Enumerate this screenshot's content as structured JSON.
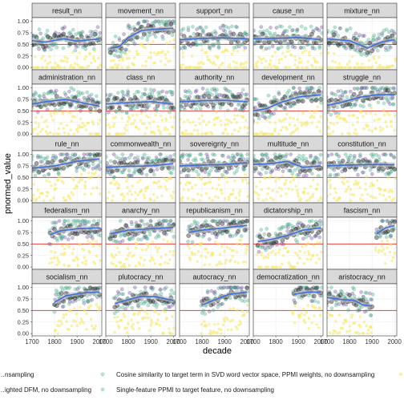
{
  "chart_data": {
    "type": "scatter",
    "title": "",
    "xlabel": "decade",
    "ylabel": "pnormed_value",
    "xlim": [
      1700,
      2010
    ],
    "ylim": [
      -0.05,
      1.08
    ],
    "x_ticks": [
      1700,
      1800,
      1900,
      2000
    ],
    "x_tick_labels": [
      "1700",
      "1800",
      "1900",
      "2000"
    ],
    "y_ticks": [
      0,
      0.25,
      0.5,
      0.75,
      1
    ],
    "y_tick_labels": [
      "0.00",
      "0.25",
      "0.50",
      "0.75",
      "1.00"
    ],
    "reference_line": 0.5,
    "grid": true,
    "legend_position": "bottom",
    "colors": {
      "strip_fill": "#d9d9d9",
      "panel_border": "#333333",
      "grid": "#ebebeb",
      "reference": "#e8413c",
      "smooth": "#3f6fd8",
      "ribbon": "#bfbfbf",
      "series": [
        "#333333",
        "#44aa88",
        "#6a4c9c",
        "#f5e663"
      ]
    },
    "legend_entries": [
      "…nsampling",
      "Cosine similarity to target term in SVD word vector space, PPMI weights, no downsampling",
      "…ighted DFM, no downsampling",
      "Single-feature PPMI to target feature, no downsampling"
    ],
    "panels": [
      {
        "name": "result_nn",
        "start": 1700,
        "end": 2000,
        "trend": [
          [
            1700,
            0.58
          ],
          [
            1760,
            0.55
          ],
          [
            1840,
            0.62
          ],
          [
            1900,
            0.57
          ],
          [
            1960,
            0.6
          ],
          [
            2000,
            0.62
          ]
        ]
      },
      {
        "name": "movement_nn",
        "start": 1720,
        "end": 2000,
        "trend": [
          [
            1720,
            0.42
          ],
          [
            1760,
            0.45
          ],
          [
            1800,
            0.65
          ],
          [
            1860,
            0.8
          ],
          [
            1920,
            0.83
          ],
          [
            2000,
            0.85
          ]
        ]
      },
      {
        "name": "support_nn",
        "start": 1700,
        "end": 2000,
        "trend": [
          [
            1700,
            0.6
          ],
          [
            1800,
            0.63
          ],
          [
            1900,
            0.64
          ],
          [
            2000,
            0.62
          ]
        ]
      },
      {
        "name": "cause_nn",
        "start": 1700,
        "end": 2000,
        "trend": [
          [
            1700,
            0.62
          ],
          [
            1800,
            0.63
          ],
          [
            1900,
            0.65
          ],
          [
            2000,
            0.6
          ]
        ]
      },
      {
        "name": "mixture_nn",
        "start": 1700,
        "end": 2000,
        "trend": [
          [
            1700,
            0.62
          ],
          [
            1800,
            0.58
          ],
          [
            1880,
            0.42
          ],
          [
            1940,
            0.55
          ],
          [
            2000,
            0.6
          ]
        ]
      },
      {
        "name": "administration_nn",
        "start": 1700,
        "end": 2000,
        "trend": [
          [
            1700,
            0.65
          ],
          [
            1760,
            0.7
          ],
          [
            1850,
            0.75
          ],
          [
            1920,
            0.68
          ],
          [
            2000,
            0.6
          ]
        ]
      },
      {
        "name": "class_nn",
        "start": 1700,
        "end": 2000,
        "trend": [
          [
            1700,
            0.65
          ],
          [
            1800,
            0.68
          ],
          [
            1900,
            0.7
          ],
          [
            2000,
            0.65
          ]
        ]
      },
      {
        "name": "authority_nn",
        "start": 1700,
        "end": 2000,
        "trend": [
          [
            1700,
            0.7
          ],
          [
            1800,
            0.72
          ],
          [
            1900,
            0.73
          ],
          [
            2000,
            0.7
          ]
        ]
      },
      {
        "name": "development_nn",
        "start": 1700,
        "end": 2000,
        "trend": [
          [
            1700,
            0.5
          ],
          [
            1760,
            0.55
          ],
          [
            1820,
            0.68
          ],
          [
            1900,
            0.8
          ],
          [
            2000,
            0.85
          ]
        ]
      },
      {
        "name": "struggle_nn",
        "start": 1700,
        "end": 2000,
        "trend": [
          [
            1700,
            0.62
          ],
          [
            1760,
            0.68
          ],
          [
            1850,
            0.8
          ],
          [
            1920,
            0.85
          ],
          [
            2000,
            0.85
          ]
        ]
      },
      {
        "name": "rule_nn",
        "start": 1700,
        "end": 2000,
        "trend": [
          [
            1700,
            0.7
          ],
          [
            1800,
            0.75
          ],
          [
            1900,
            0.85
          ],
          [
            2000,
            0.9
          ]
        ]
      },
      {
        "name": "commonwealth_nn",
        "start": 1700,
        "end": 2000,
        "trend": [
          [
            1700,
            0.72
          ],
          [
            1800,
            0.74
          ],
          [
            1900,
            0.75
          ],
          [
            2000,
            0.8
          ]
        ]
      },
      {
        "name": "sovereignty_nn",
        "start": 1700,
        "end": 2000,
        "trend": [
          [
            1700,
            0.75
          ],
          [
            1800,
            0.77
          ],
          [
            1900,
            0.78
          ],
          [
            2000,
            0.82
          ]
        ]
      },
      {
        "name": "multitude_nn",
        "start": 1700,
        "end": 2000,
        "trend": [
          [
            1700,
            0.78
          ],
          [
            1780,
            0.8
          ],
          [
            1850,
            0.85
          ],
          [
            1920,
            0.72
          ],
          [
            2000,
            0.75
          ]
        ]
      },
      {
        "name": "constitution_nn",
        "start": 1700,
        "end": 2000,
        "trend": [
          [
            1700,
            0.75
          ],
          [
            1800,
            0.77
          ],
          [
            1900,
            0.78
          ],
          [
            2000,
            0.78
          ]
        ]
      },
      {
        "name": "federalism_nn",
        "start": 1780,
        "end": 2000,
        "trend": [
          [
            1780,
            0.7
          ],
          [
            1820,
            0.78
          ],
          [
            1900,
            0.83
          ],
          [
            2000,
            0.85
          ]
        ]
      },
      {
        "name": "anarchy_nn",
        "start": 1720,
        "end": 2000,
        "trend": [
          [
            1720,
            0.72
          ],
          [
            1800,
            0.8
          ],
          [
            1900,
            0.83
          ],
          [
            2000,
            0.86
          ]
        ]
      },
      {
        "name": "republicanism_nn",
        "start": 1740,
        "end": 2000,
        "trend": [
          [
            1740,
            0.75
          ],
          [
            1800,
            0.8
          ],
          [
            1900,
            0.85
          ],
          [
            2000,
            0.9
          ]
        ]
      },
      {
        "name": "dictatorship_nn",
        "start": 1720,
        "end": 2000,
        "trend": [
          [
            1720,
            0.55
          ],
          [
            1780,
            0.6
          ],
          [
            1850,
            0.68
          ],
          [
            1920,
            0.8
          ],
          [
            2000,
            0.85
          ]
        ]
      },
      {
        "name": "fascism_nn",
        "start": 1920,
        "end": 2000,
        "trend": [
          [
            1920,
            0.72
          ],
          [
            1960,
            0.85
          ],
          [
            2000,
            0.9
          ]
        ]
      },
      {
        "name": "socialism_nn",
        "start": 1800,
        "end": 2000,
        "trend": [
          [
            1800,
            0.68
          ],
          [
            1850,
            0.82
          ],
          [
            1920,
            0.88
          ],
          [
            2000,
            0.9
          ]
        ]
      },
      {
        "name": "plutocracy_nn",
        "start": 1740,
        "end": 2000,
        "trend": [
          [
            1740,
            0.65
          ],
          [
            1790,
            0.72
          ],
          [
            1850,
            0.8
          ],
          [
            1920,
            0.8
          ],
          [
            2000,
            0.72
          ]
        ]
      },
      {
        "name": "autocracy_nn",
        "start": 1800,
        "end": 2000,
        "trend": [
          [
            1800,
            0.62
          ],
          [
            1850,
            0.72
          ],
          [
            1920,
            0.85
          ],
          [
            2000,
            0.9
          ]
        ]
      },
      {
        "name": "democratization_nn",
        "start": 1880,
        "end": 2000,
        "trend": [
          [
            1880,
            0.85
          ],
          [
            1940,
            0.9
          ],
          [
            2000,
            0.9
          ]
        ]
      },
      {
        "name": "aristocracy_nn",
        "start": 1700,
        "end": 1900,
        "trend": [
          [
            1700,
            0.78
          ],
          [
            1760,
            0.74
          ],
          [
            1820,
            0.72
          ],
          [
            1860,
            0.62
          ],
          [
            1900,
            0.6
          ]
        ]
      }
    ]
  }
}
